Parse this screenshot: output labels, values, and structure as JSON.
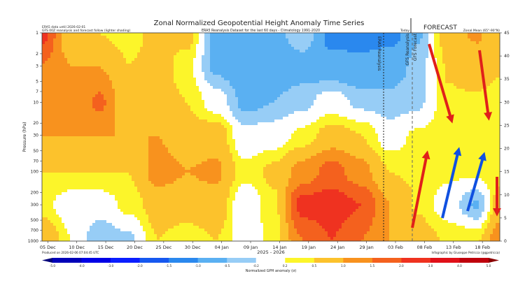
{
  "chart_data": {
    "type": "heatmap",
    "title": "Zonal Normalized Geopotential Height Anomaly Time Series",
    "subtitle": "ERA5 Reanalysis Dataset for the last 60 days - Climatology 1991-2020",
    "note_left_1": "ERA5 data until 2026-02-01",
    "note_left_2": "GFS 00Z reanalysis and forecast follow (lighter shading)",
    "note_right": "Zonal Mean (65°-90°N)",
    "today_label": "Today",
    "forecast_label": "FORECAST",
    "era5_label": "ERA5 Reanalysis",
    "gfs_reanalysis_label": "GFS Reanalysis",
    "gfs_forecast_label": "GFS Forecast",
    "xlabel": "2025 - 2026",
    "ylabel": "Pressure (hPa)",
    "produced": "Produced on 2026-02-06 07:04:45 UTC",
    "credit": "Infographic by Giuseppe Petricca (@gpetricca)",
    "y_scale": "log",
    "ylim": [
      1000,
      1
    ],
    "y_ticks": [
      "1",
      "2",
      "3",
      "5",
      "7",
      "10",
      "20",
      "30",
      "50",
      "70",
      "100",
      "200",
      "300",
      "500",
      "700",
      "1000"
    ],
    "y_right_ticks": [
      "0",
      "5",
      "10",
      "15",
      "20",
      "25",
      "30",
      "35",
      "40",
      "45"
    ],
    "x_ticks": [
      "05 Dec",
      "10 Dec",
      "15 Dec",
      "20 Dec",
      "25 Dec",
      "30 Dec",
      "04 Jan",
      "09 Jan",
      "14 Jan",
      "19 Jan",
      "24 Jan",
      "29 Jan",
      "03 Feb",
      "08 Feb",
      "13 Feb",
      "18 Feb"
    ],
    "x_dates": [
      "2025-12-04",
      "2025-12-09",
      "2025-12-14",
      "2025-12-19",
      "2025-12-24",
      "2025-12-29",
      "2026-01-03",
      "2026-01-08",
      "2026-01-13",
      "2026-01-18",
      "2026-01-23",
      "2026-01-28",
      "2026-02-02",
      "2026-02-07",
      "2026-02-12",
      "2026-02-17",
      "2026-02-21"
    ],
    "pressure_levels": [
      1,
      3,
      10,
      30,
      100,
      300,
      1000
    ],
    "values": [
      [
        2.2,
        0.5,
        0.5,
        0.3,
        0.7,
        0.7,
        -0.7,
        -1.0,
        -0.7,
        -0.2,
        -1.2,
        -1.2,
        -1.2,
        -0.6,
        0.8,
        1.2,
        0.6
      ],
      [
        1.5,
        1.0,
        1.0,
        0.5,
        0.7,
        0.3,
        -0.6,
        -0.8,
        -0.8,
        -0.7,
        -0.8,
        -0.9,
        -0.7,
        -0.4,
        0.6,
        0.8,
        0.6
      ],
      [
        1.0,
        1.0,
        1.6,
        0.5,
        0.7,
        0.5,
        0.0,
        -0.6,
        -0.5,
        -0.3,
        0.0,
        -0.3,
        -0.4,
        -0.3,
        0.5,
        0.5,
        0.4
      ],
      [
        1.0,
        1.0,
        1.0,
        1.0,
        1.0,
        0.7,
        0.8,
        -0.1,
        0.0,
        0.3,
        0.7,
        0.5,
        0.0,
        0.3,
        0.4,
        0.3,
        0.3
      ],
      [
        0.5,
        0.5,
        0.5,
        0.5,
        1.2,
        1.0,
        1.1,
        0.3,
        0.6,
        1.2,
        1.7,
        1.2,
        0.5,
        0.4,
        0.3,
        0.3,
        0.4
      ],
      [
        0.3,
        0.0,
        0.0,
        0.3,
        0.7,
        0.7,
        0.8,
        -0.1,
        0.4,
        2.2,
        2.3,
        2.0,
        1.0,
        0.5,
        0.0,
        -0.6,
        0.8
      ],
      [
        1.0,
        0.2,
        -0.5,
        -0.3,
        0.5,
        0.3,
        0.5,
        0.0,
        0.3,
        1.5,
        2.0,
        1.5,
        1.0,
        0.8,
        0.5,
        0.5,
        1.5
      ]
    ],
    "colorbar": {
      "label": "Normalized GPH anomaly (σ)",
      "bounds": [
        -5.0,
        -4.0,
        -3.0,
        -2.0,
        -1.5,
        -1.0,
        -0.5,
        -0.2,
        0.2,
        0.5,
        1.0,
        1.5,
        2.0,
        3.0,
        4.0,
        5.0
      ],
      "tick_labels": [
        "-5.0",
        "-4.0",
        "-3.0",
        "-2.0",
        "-1.5",
        "-1.0",
        "-0.5",
        "-0.2",
        "0.2",
        "0.5",
        "1.0",
        "1.5",
        "2.0",
        "3.0",
        "4.0",
        "5.0"
      ],
      "colors": [
        "#00007a",
        "#0000b8",
        "#0000e6",
        "#0a1eff",
        "#1658f0",
        "#2a88ee",
        "#5ab0f2",
        "#97cdf6",
        "#ffffff",
        "#fcf52a",
        "#fcc22c",
        "#f8921e",
        "#f4611e",
        "#ef3220",
        "#e01018",
        "#bf000c",
        "#8a0000"
      ]
    },
    "annotations": {
      "arrow_colors": {
        "warming_down": "#e0201a",
        "upward": "#1050e0"
      }
    }
  }
}
